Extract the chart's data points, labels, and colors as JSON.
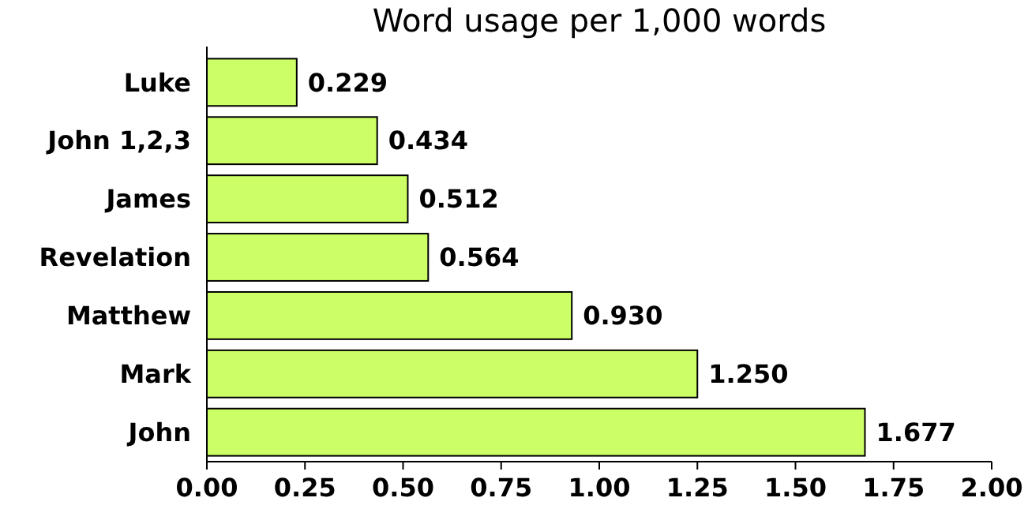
{
  "chart_data": {
    "type": "bar",
    "orientation": "horizontal",
    "title": "Word usage per 1,000 words",
    "categories": [
      "Luke",
      "John 1,2,3",
      "James",
      "Revelation",
      "Matthew",
      "Mark",
      "John"
    ],
    "values": [
      0.229,
      0.434,
      0.512,
      0.564,
      0.93,
      1.25,
      1.677
    ],
    "value_labels": [
      "0.229",
      "0.434",
      "0.512",
      "0.564",
      "0.930",
      "1.250",
      "1.677"
    ],
    "color": "#ccff66",
    "xlim": [
      0,
      2
    ],
    "xticks": [
      {
        "value": 0,
        "label": "0.00"
      },
      {
        "value": 0.25,
        "label": "0.25"
      },
      {
        "value": 0.5,
        "label": "0.50"
      },
      {
        "value": 0.75,
        "label": "0.75"
      },
      {
        "value": 1,
        "label": "1.00"
      },
      {
        "value": 1.25,
        "label": "1.25"
      },
      {
        "value": 1.5,
        "label": "1.50"
      },
      {
        "value": 1.75,
        "label": "1.75"
      },
      {
        "value": 2,
        "label": "2.00"
      }
    ]
  }
}
